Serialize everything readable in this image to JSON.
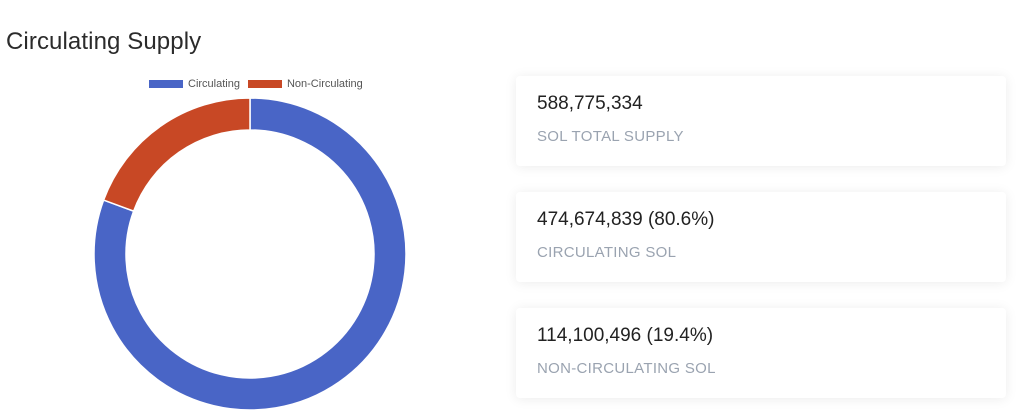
{
  "page": {
    "title": "Circulating Supply"
  },
  "chart_data": {
    "type": "pie",
    "variant": "donut",
    "legend_position": "top",
    "series": [
      {
        "name": "Circulating",
        "value": 474674839,
        "percent": 80.6,
        "color": "#4965c6"
      },
      {
        "name": "Non-Circulating",
        "value": 114100496,
        "percent": 19.4,
        "color": "#c84825"
      }
    ],
    "start_angle": "top, clockwise"
  },
  "stats": [
    {
      "value": "588,775,334",
      "label": "SOL TOTAL SUPPLY"
    },
    {
      "value": "474,674,839 (80.6%)",
      "label": "CIRCULATING SOL"
    },
    {
      "value": "114,100,496 (19.4%)",
      "label": "NON-CIRCULATING SOL"
    }
  ],
  "colors": {
    "circulating": "#4965c6",
    "non_circulating": "#c84825",
    "label_muted": "#9aa3b0"
  }
}
